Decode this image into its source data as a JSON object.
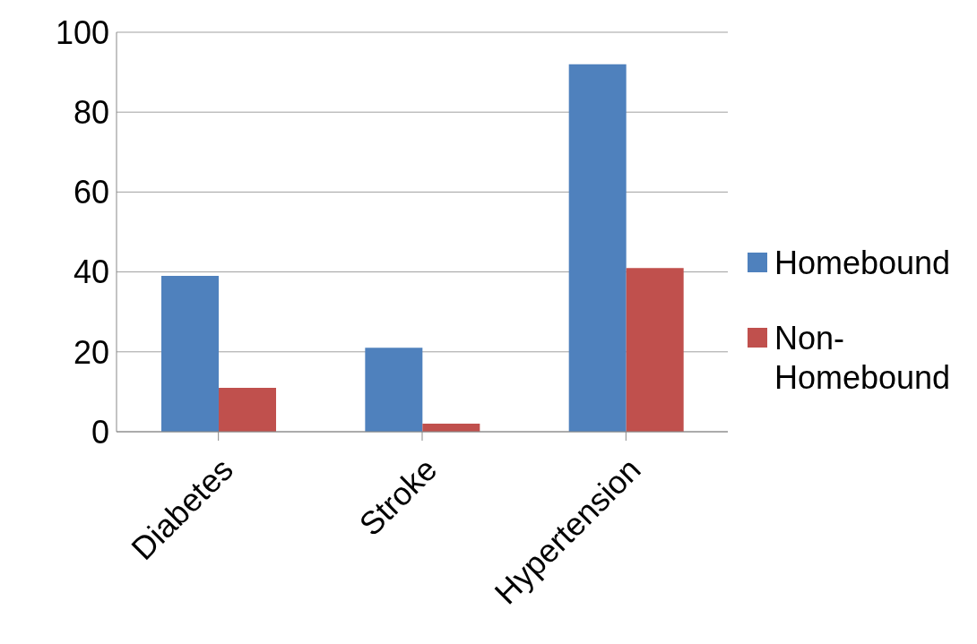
{
  "chart_data": {
    "type": "bar",
    "categories": [
      "Diabetes",
      "Stroke",
      "Hypertension"
    ],
    "series": [
      {
        "name": "Homebound",
        "color": "#4f81bd",
        "values": [
          39,
          21,
          92
        ]
      },
      {
        "name": "Non-Homebound",
        "color": "#c0504d",
        "values": [
          11,
          2,
          41
        ]
      }
    ],
    "ylim": [
      0,
      100
    ],
    "yticks": [
      0,
      20,
      40,
      60,
      80,
      100
    ],
    "grid": "y",
    "legend": "right"
  }
}
